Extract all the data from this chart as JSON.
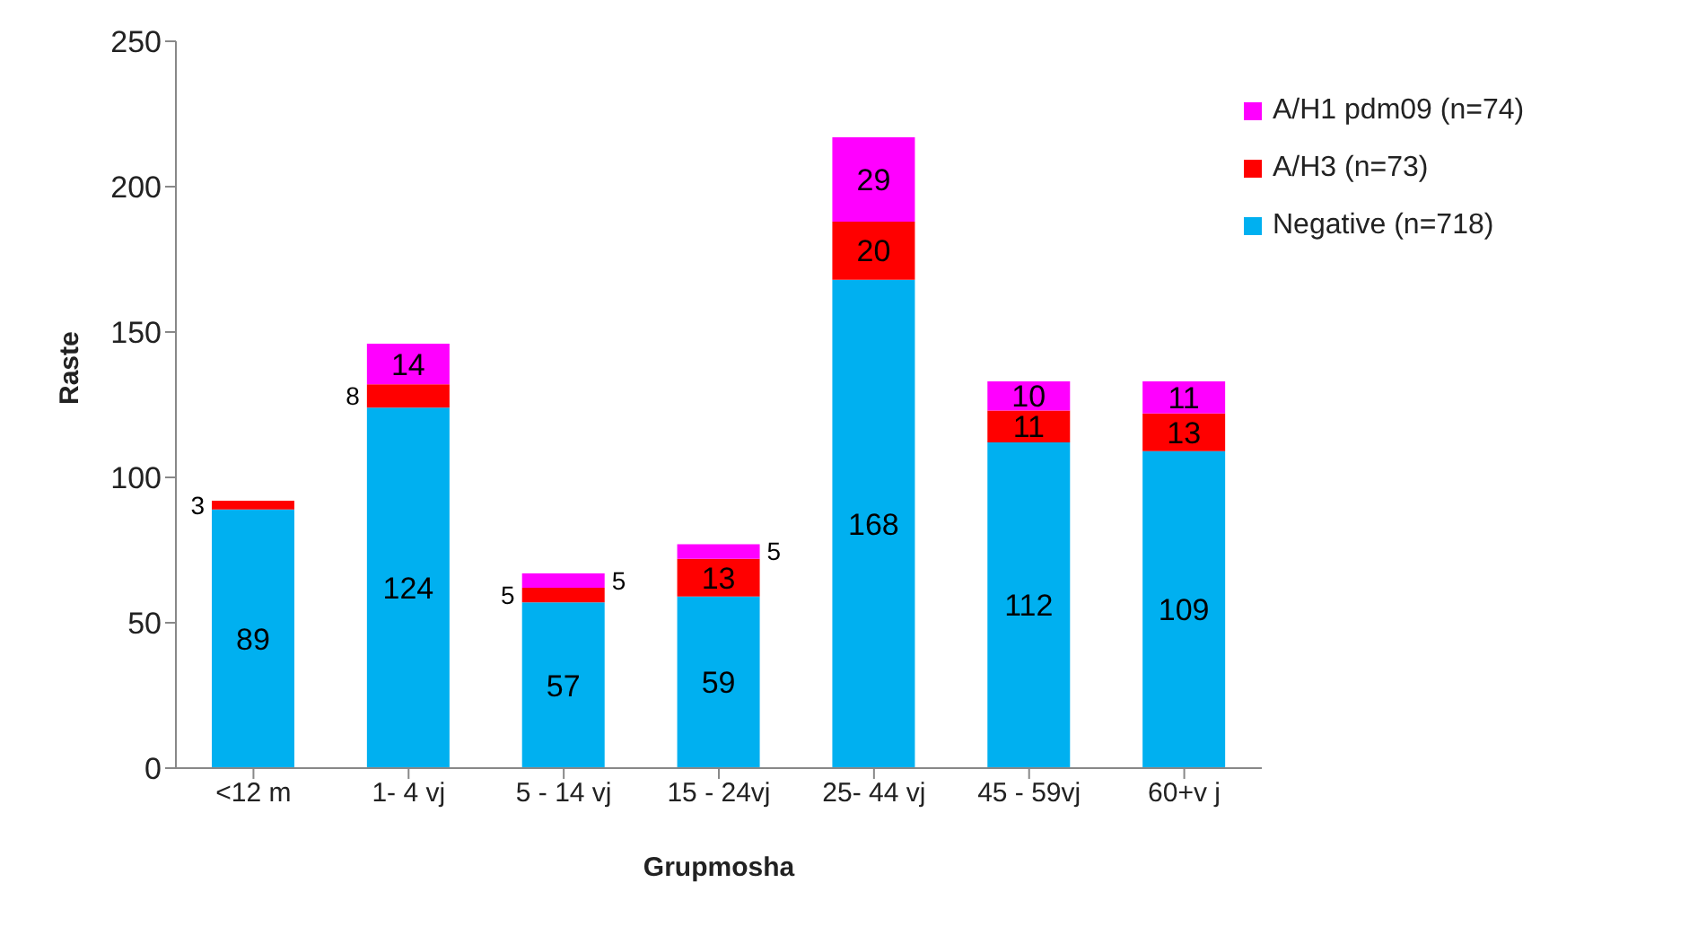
{
  "chart_data": {
    "type": "bar",
    "xlabel": "Grupmosha",
    "ylabel": "Raste",
    "categories": [
      "<12 m",
      "1- 4 vj",
      "5 - 14 vj",
      "15 - 24vj",
      "25- 44 vj",
      "45 - 59vj",
      "60+v j"
    ],
    "series": [
      {
        "name": "Negative (n=718)",
        "color": "#00b0f0",
        "values": [
          89,
          124,
          57,
          59,
          168,
          112,
          109
        ]
      },
      {
        "name": "A/H3 (n=73)",
        "color": "#ff0000",
        "values": [
          3,
          8,
          5,
          13,
          20,
          11,
          13
        ]
      },
      {
        "name": "A/H1 pdm09 (n=74)",
        "color": "#ff00ff",
        "values": [
          null,
          14,
          5,
          5,
          29,
          10,
          11
        ]
      }
    ],
    "stacked": true,
    "ylim": [
      0,
      250
    ],
    "yticks": [
      0,
      50,
      100,
      150,
      200,
      250
    ],
    "grid": false,
    "legend": "top right",
    "data_labels": true
  }
}
